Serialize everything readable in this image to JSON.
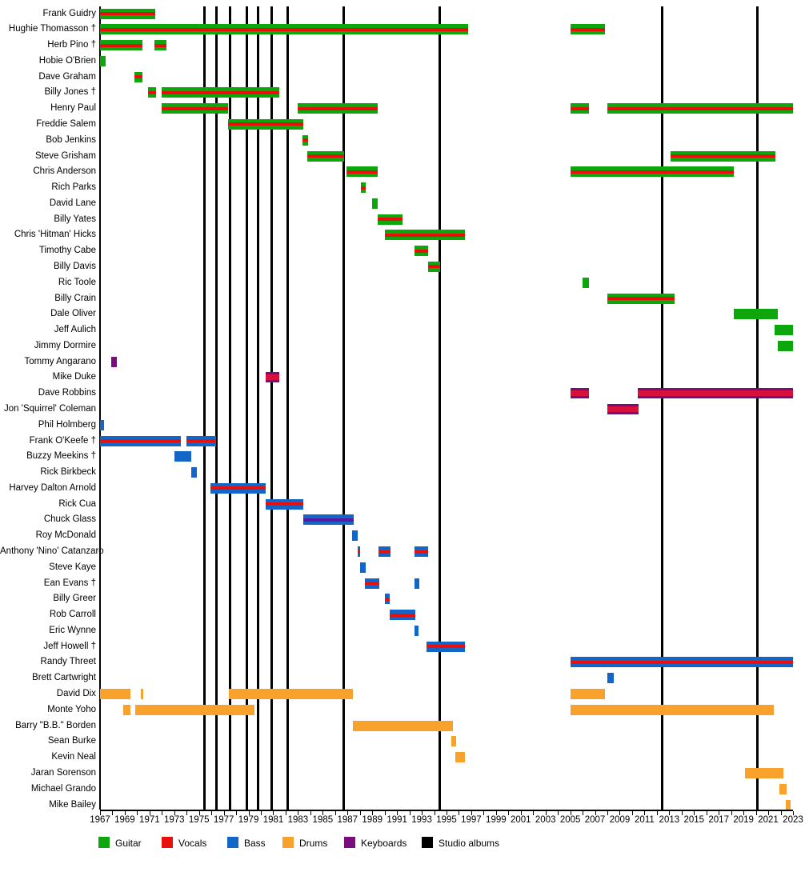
{
  "chart_data": {
    "type": "timeline",
    "x_axis": {
      "start_year": 1967,
      "end_year": 2023,
      "tick_step": 1,
      "label_step": 2,
      "tick_labels": [
        "1967",
        "1969",
        "1971",
        "1973",
        "1975",
        "1977",
        "1979",
        "1981",
        "1983",
        "1985",
        "1987",
        "1989",
        "1991",
        "1993",
        "1995",
        "1997",
        "1999",
        "2001",
        "2003",
        "2005",
        "2007",
        "2009",
        "2011",
        "2013",
        "2015",
        "2017",
        "2019",
        "2021",
        "2023"
      ]
    },
    "colors": {
      "guitar": "#0DA60D",
      "vocals": "#E8100C",
      "bass": "#1465C8",
      "drums": "#F9A12D",
      "keyboards": "#7B0C7B",
      "vocals_on_keys": "#D8103C",
      "keys_on_bass": "#5A18A0",
      "albums": "#000000"
    },
    "legend": [
      {
        "key": "guitar",
        "label": "Guitar",
        "color": "#0DA60D"
      },
      {
        "key": "vocals",
        "label": "Vocals",
        "color": "#E8100C"
      },
      {
        "key": "bass",
        "label": "Bass",
        "color": "#1465C8"
      },
      {
        "key": "drums",
        "label": "Drums",
        "color": "#F9A12D"
      },
      {
        "key": "keyboards",
        "label": "Keyboards",
        "color": "#7B0C7B"
      },
      {
        "key": "albums",
        "label": "Studio albums",
        "color": "#000000"
      }
    ],
    "studio_album_years": [
      1975.47,
      1976.4,
      1977.5,
      1978.85,
      1979.8,
      1980.9,
      1982.15,
      1986.66,
      1994.45,
      2012.4,
      2020.1
    ],
    "members": [
      {
        "name": "Frank Guidry",
        "segments": [
          {
            "from": 1967.0,
            "to": 1971.45,
            "roles": [
              "guitar",
              "vocals"
            ]
          }
        ]
      },
      {
        "name": "Hughie Thomasson †",
        "segments": [
          {
            "from": 1967.0,
            "to": 1996.75,
            "roles": [
              "guitar",
              "vocals"
            ]
          },
          {
            "from": 2005.0,
            "to": 2007.8,
            "roles": [
              "guitar",
              "vocals"
            ]
          }
        ]
      },
      {
        "name": "Herb Pino †",
        "segments": [
          {
            "from": 1967.0,
            "to": 1970.45,
            "roles": [
              "guitar",
              "vocals"
            ]
          },
          {
            "from": 1971.4,
            "to": 1972.4,
            "roles": [
              "guitar",
              "vocals"
            ]
          }
        ]
      },
      {
        "name": "Hobie O'Brien",
        "segments": [
          {
            "from": 1967.0,
            "to": 1967.45,
            "roles": [
              "guitar"
            ]
          }
        ]
      },
      {
        "name": "Dave Graham",
        "segments": [
          {
            "from": 1969.8,
            "to": 1970.4,
            "roles": [
              "guitar",
              "vocals"
            ]
          }
        ]
      },
      {
        "name": "Billy Jones †",
        "segments": [
          {
            "from": 1970.9,
            "to": 1971.5,
            "roles": [
              "guitar",
              "vocals"
            ]
          },
          {
            "from": 1972.0,
            "to": 1981.5,
            "roles": [
              "guitar",
              "vocals"
            ]
          }
        ]
      },
      {
        "name": "Henry Paul",
        "segments": [
          {
            "from": 1972.0,
            "to": 1977.35,
            "roles": [
              "guitar",
              "vocals"
            ]
          },
          {
            "from": 1982.95,
            "to": 1989.45,
            "roles": [
              "guitar",
              "vocals"
            ]
          },
          {
            "from": 2005.0,
            "to": 2006.5,
            "roles": [
              "guitar",
              "vocals"
            ]
          },
          {
            "from": 2008.0,
            "to": 2023.0,
            "roles": [
              "guitar",
              "vocals"
            ]
          }
        ]
      },
      {
        "name": "Freddie Salem",
        "segments": [
          {
            "from": 1977.35,
            "to": 1983.45,
            "roles": [
              "guitar",
              "vocals"
            ]
          }
        ]
      },
      {
        "name": "Bob Jenkins",
        "segments": [
          {
            "from": 1983.35,
            "to": 1983.8,
            "roles": [
              "guitar",
              "vocals"
            ]
          }
        ]
      },
      {
        "name": "Steve Grisham",
        "segments": [
          {
            "from": 1983.75,
            "to": 1986.7,
            "roles": [
              "guitar",
              "vocals"
            ]
          },
          {
            "from": 2013.1,
            "to": 2021.6,
            "roles": [
              "guitar",
              "vocals"
            ]
          }
        ]
      },
      {
        "name": "Chris Anderson",
        "segments": [
          {
            "from": 1986.9,
            "to": 1989.45,
            "roles": [
              "guitar",
              "vocals"
            ]
          },
          {
            "from": 2005.0,
            "to": 2018.2,
            "roles": [
              "guitar",
              "vocals"
            ]
          }
        ]
      },
      {
        "name": "Rich Parks",
        "segments": [
          {
            "from": 1988.1,
            "to": 1988.5,
            "roles": [
              "guitar",
              "vocals"
            ]
          }
        ]
      },
      {
        "name": "David Lane",
        "segments": [
          {
            "from": 1989.0,
            "to": 1989.45,
            "roles": [
              "guitar"
            ]
          }
        ]
      },
      {
        "name": "Billy Yates",
        "segments": [
          {
            "from": 1989.45,
            "to": 1991.45,
            "roles": [
              "guitar",
              "vocals"
            ]
          }
        ]
      },
      {
        "name": "Chris 'Hitman' Hicks",
        "segments": [
          {
            "from": 1990.0,
            "to": 1996.5,
            "roles": [
              "guitar",
              "vocals"
            ]
          }
        ]
      },
      {
        "name": "Timothy Cabe",
        "segments": [
          {
            "from": 1992.4,
            "to": 1993.5,
            "roles": [
              "guitar",
              "vocals"
            ]
          }
        ]
      },
      {
        "name": "Billy Davis",
        "segments": [
          {
            "from": 1993.5,
            "to": 1994.5,
            "roles": [
              "guitar",
              "vocals"
            ]
          }
        ]
      },
      {
        "name": "Ric Toole",
        "segments": [
          {
            "from": 2006.0,
            "to": 2006.5,
            "roles": [
              "guitar"
            ]
          }
        ]
      },
      {
        "name": "Billy Crain",
        "segments": [
          {
            "from": 2008.0,
            "to": 2013.45,
            "roles": [
              "guitar",
              "vocals"
            ]
          }
        ]
      },
      {
        "name": "Dale Oliver",
        "segments": [
          {
            "from": 2018.2,
            "to": 2021.8,
            "roles": [
              "guitar"
            ]
          }
        ]
      },
      {
        "name": "Jeff Aulich",
        "segments": [
          {
            "from": 2021.5,
            "to": 2023.0,
            "roles": [
              "guitar"
            ]
          }
        ]
      },
      {
        "name": "Jimmy Dormire",
        "segments": [
          {
            "from": 2021.75,
            "to": 2023.0,
            "roles": [
              "guitar"
            ]
          }
        ]
      },
      {
        "name": "Tommy Angarano",
        "segments": [
          {
            "from": 1967.9,
            "to": 1968.35,
            "roles": [
              "keyboards"
            ]
          }
        ]
      },
      {
        "name": "Mike Duke",
        "segments": [
          {
            "from": 1980.4,
            "to": 1981.5,
            "roles": [
              "keyboards",
              "vocals"
            ]
          }
        ]
      },
      {
        "name": "Dave Robbins",
        "segments": [
          {
            "from": 2005.0,
            "to": 2006.5,
            "roles": [
              "keyboards",
              "vocals"
            ]
          },
          {
            "from": 2010.45,
            "to": 2023.0,
            "roles": [
              "keyboards",
              "vocals"
            ]
          }
        ]
      },
      {
        "name": "Jon 'Squirrel' Coleman",
        "segments": [
          {
            "from": 2008.0,
            "to": 2010.55,
            "roles": [
              "keyboards",
              "vocals"
            ]
          }
        ]
      },
      {
        "name": "Phil Holmberg",
        "segments": [
          {
            "from": 1967.0,
            "to": 1967.3,
            "roles": [
              "bass"
            ]
          }
        ]
      },
      {
        "name": "Frank O'Keefe †",
        "segments": [
          {
            "from": 1967.0,
            "to": 1973.5,
            "roles": [
              "bass",
              "vocals"
            ]
          },
          {
            "from": 1974.0,
            "to": 1976.4,
            "roles": [
              "bass",
              "vocals"
            ]
          }
        ]
      },
      {
        "name": "Buzzy Meekins †",
        "segments": [
          {
            "from": 1973.0,
            "to": 1974.4,
            "roles": [
              "bass"
            ]
          }
        ]
      },
      {
        "name": "Rick Birkbeck",
        "segments": [
          {
            "from": 1974.4,
            "to": 1974.8,
            "roles": [
              "bass"
            ]
          }
        ]
      },
      {
        "name": "Harvey Dalton Arnold",
        "segments": [
          {
            "from": 1975.95,
            "to": 1980.4,
            "roles": [
              "bass",
              "vocals"
            ]
          }
        ]
      },
      {
        "name": "Rick Cua",
        "segments": [
          {
            "from": 1980.4,
            "to": 1983.45,
            "roles": [
              "bass",
              "vocals"
            ]
          }
        ]
      },
      {
        "name": "Chuck Glass",
        "segments": [
          {
            "from": 1983.45,
            "to": 1987.5,
            "roles": [
              "bass",
              "keyboards"
            ]
          }
        ]
      },
      {
        "name": "Roy McDonald",
        "segments": [
          {
            "from": 1987.4,
            "to": 1987.8,
            "roles": [
              "bass"
            ]
          }
        ]
      },
      {
        "name": "Anthony 'Nino' Catanzaro",
        "segments": [
          {
            "from": 1987.8,
            "to": 1988.0,
            "roles": [
              "bass",
              "vocals"
            ]
          },
          {
            "from": 1989.5,
            "to": 1990.5,
            "roles": [
              "bass",
              "vocals"
            ]
          },
          {
            "from": 1992.4,
            "to": 1993.5,
            "roles": [
              "bass",
              "vocals"
            ]
          }
        ]
      },
      {
        "name": "Steve Kaye",
        "segments": [
          {
            "from": 1988.0,
            "to": 1988.5,
            "roles": [
              "bass"
            ]
          }
        ]
      },
      {
        "name": "Ean Evans †",
        "segments": [
          {
            "from": 1988.4,
            "to": 1989.6,
            "roles": [
              "bass",
              "vocals"
            ]
          },
          {
            "from": 1992.4,
            "to": 1992.8,
            "roles": [
              "bass"
            ]
          }
        ]
      },
      {
        "name": "Billy Greer",
        "segments": [
          {
            "from": 1990.0,
            "to": 1990.4,
            "roles": [
              "bass",
              "vocals"
            ]
          }
        ]
      },
      {
        "name": "Rob Carroll",
        "segments": [
          {
            "from": 1990.4,
            "to": 1992.5,
            "roles": [
              "bass",
              "vocals"
            ]
          }
        ]
      },
      {
        "name": "Eric Wynne",
        "segments": [
          {
            "from": 1992.4,
            "to": 1992.75,
            "roles": [
              "bass"
            ]
          }
        ]
      },
      {
        "name": "Jeff Howell †",
        "segments": [
          {
            "from": 1993.4,
            "to": 1996.5,
            "roles": [
              "bass",
              "vocals"
            ]
          }
        ]
      },
      {
        "name": "Randy Threet",
        "segments": [
          {
            "from": 2005.0,
            "to": 2023.0,
            "roles": [
              "bass",
              "vocals"
            ]
          }
        ]
      },
      {
        "name": "Brett Cartwright",
        "segments": [
          {
            "from": 2008.0,
            "to": 2008.5,
            "roles": [
              "bass"
            ]
          }
        ]
      },
      {
        "name": "David Dix",
        "segments": [
          {
            "from": 1967.0,
            "to": 1969.45,
            "roles": [
              "drums"
            ]
          },
          {
            "from": 1970.3,
            "to": 1970.45,
            "roles": [
              "drums"
            ]
          },
          {
            "from": 1977.4,
            "to": 1987.45,
            "roles": [
              "drums"
            ]
          },
          {
            "from": 2005.0,
            "to": 2007.8,
            "roles": [
              "drums"
            ]
          }
        ]
      },
      {
        "name": "Monte Yoho",
        "segments": [
          {
            "from": 1968.9,
            "to": 1969.45,
            "roles": [
              "drums"
            ]
          },
          {
            "from": 1969.85,
            "to": 1979.5,
            "roles": [
              "drums"
            ]
          },
          {
            "from": 2005.0,
            "to": 2021.45,
            "roles": [
              "drums"
            ]
          }
        ]
      },
      {
        "name": "Barry \"B.B.\" Borden",
        "segments": [
          {
            "from": 1987.45,
            "to": 1995.5,
            "roles": [
              "drums"
            ]
          }
        ]
      },
      {
        "name": "Sean Burke",
        "segments": [
          {
            "from": 1995.4,
            "to": 1995.75,
            "roles": [
              "drums"
            ]
          }
        ]
      },
      {
        "name": "Kevin Neal",
        "segments": [
          {
            "from": 1995.7,
            "to": 1996.5,
            "roles": [
              "drums"
            ]
          }
        ]
      },
      {
        "name": "Jaran Sorenson",
        "segments": [
          {
            "from": 2019.1,
            "to": 2022.2,
            "roles": [
              "drums"
            ]
          }
        ]
      },
      {
        "name": "Michael Grando",
        "segments": [
          {
            "from": 2021.9,
            "to": 2022.5,
            "roles": [
              "drums"
            ]
          }
        ]
      },
      {
        "name": "Mike Bailey",
        "segments": [
          {
            "from": 2022.45,
            "to": 2022.8,
            "roles": [
              "drums"
            ]
          }
        ]
      }
    ]
  }
}
